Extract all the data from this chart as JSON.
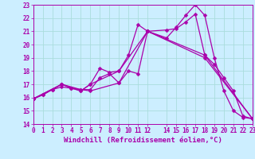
{
  "xlabel": "Windchill (Refroidissement éolien,°C)",
  "xlim": [
    0,
    23
  ],
  "ylim": [
    14,
    23
  ],
  "yticks": [
    14,
    15,
    16,
    17,
    18,
    19,
    20,
    21,
    22,
    23
  ],
  "xticks": [
    0,
    1,
    2,
    3,
    4,
    5,
    6,
    7,
    8,
    9,
    10,
    11,
    12,
    14,
    15,
    16,
    17,
    18,
    19,
    20,
    21,
    22,
    23
  ],
  "bg_color": "#cceeff",
  "grid_color": "#aadddd",
  "line_color": "#aa00aa",
  "series": [
    {
      "x": [
        0,
        1,
        2,
        3,
        4,
        5,
        6,
        7,
        8,
        9,
        10,
        11,
        12,
        14,
        15,
        16,
        17,
        18,
        19,
        20,
        21,
        22,
        23
      ],
      "y": [
        15.9,
        16.2,
        16.6,
        17.0,
        16.7,
        16.6,
        16.6,
        17.5,
        17.8,
        17.1,
        18.0,
        17.8,
        21.0,
        20.5,
        21.3,
        22.2,
        23.0,
        22.2,
        19.0,
        16.5,
        15.0,
        14.5,
        14.4
      ]
    },
    {
      "x": [
        0,
        1,
        2,
        3,
        4,
        5,
        6,
        7,
        8,
        9,
        10,
        11,
        12,
        14,
        15,
        16,
        17,
        18,
        19,
        20,
        21,
        22,
        23
      ],
      "y": [
        15.9,
        16.2,
        16.6,
        16.8,
        16.7,
        16.5,
        17.0,
        18.2,
        17.9,
        18.0,
        19.2,
        21.5,
        21.0,
        21.1,
        21.2,
        21.7,
        22.3,
        19.2,
        18.5,
        17.5,
        16.5,
        14.6,
        14.4
      ]
    },
    {
      "x": [
        0,
        3,
        5,
        6,
        9,
        12,
        18,
        23
      ],
      "y": [
        15.9,
        17.0,
        16.6,
        16.5,
        17.1,
        21.0,
        19.0,
        14.4
      ]
    },
    {
      "x": [
        0,
        3,
        5,
        6,
        9,
        12,
        18,
        23
      ],
      "y": [
        15.9,
        17.0,
        16.5,
        17.0,
        18.0,
        21.0,
        19.2,
        14.4
      ]
    }
  ],
  "markersize": 2.5,
  "linewidth": 0.9,
  "xlabel_fontsize": 6.5,
  "tick_fontsize": 5.5
}
